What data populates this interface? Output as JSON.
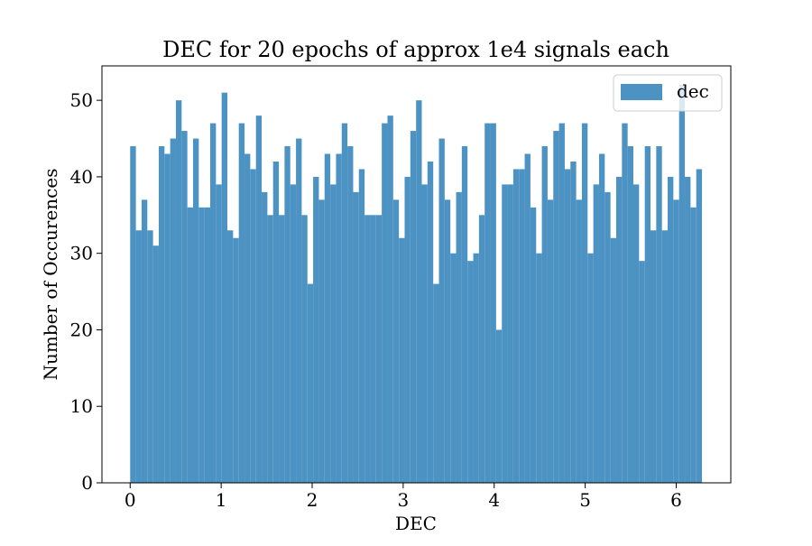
{
  "colors": {
    "bar": "#4c93c3",
    "axis": "#000000",
    "background": "#ffffff",
    "legend_border": "#cccccc"
  },
  "chart_data": {
    "type": "bar",
    "subtype": "histogram",
    "title": "DEC for 20 epochs of approx 1e4 signals each",
    "xlabel": "DEC",
    "ylabel": "Number of Occurences",
    "xlim": [
      -0.31,
      6.6
    ],
    "ylim": [
      0,
      54.5
    ],
    "bin_range": [
      0,
      6.2832
    ],
    "x_ticks": [
      0,
      1,
      2,
      3,
      4,
      5,
      6
    ],
    "y_ticks": [
      0,
      10,
      20,
      30,
      40,
      50
    ],
    "grid": false,
    "legend_position": "top-right",
    "series": [
      {
        "name": "dec",
        "values": [
          44,
          33,
          37,
          33,
          31,
          44,
          43,
          45,
          50,
          46,
          36,
          45,
          36,
          36,
          47,
          39,
          51,
          33,
          32,
          47,
          43,
          41,
          48,
          38,
          35,
          42,
          35,
          44,
          39,
          45,
          35,
          26,
          40,
          37,
          43,
          39,
          43,
          47,
          44,
          38,
          41,
          35,
          35,
          35,
          47,
          48,
          37,
          32,
          40,
          46,
          50,
          39,
          42,
          26,
          45,
          37,
          30,
          38,
          44,
          29,
          30,
          35,
          47,
          47,
          20,
          39,
          39,
          41,
          41,
          43,
          36,
          30,
          44,
          37,
          46,
          47,
          41,
          42,
          37,
          47,
          30,
          39,
          43,
          38,
          32,
          40,
          47,
          44,
          39,
          29,
          44,
          33,
          44,
          33,
          40,
          37,
          52,
          40,
          36,
          41
        ]
      }
    ]
  }
}
